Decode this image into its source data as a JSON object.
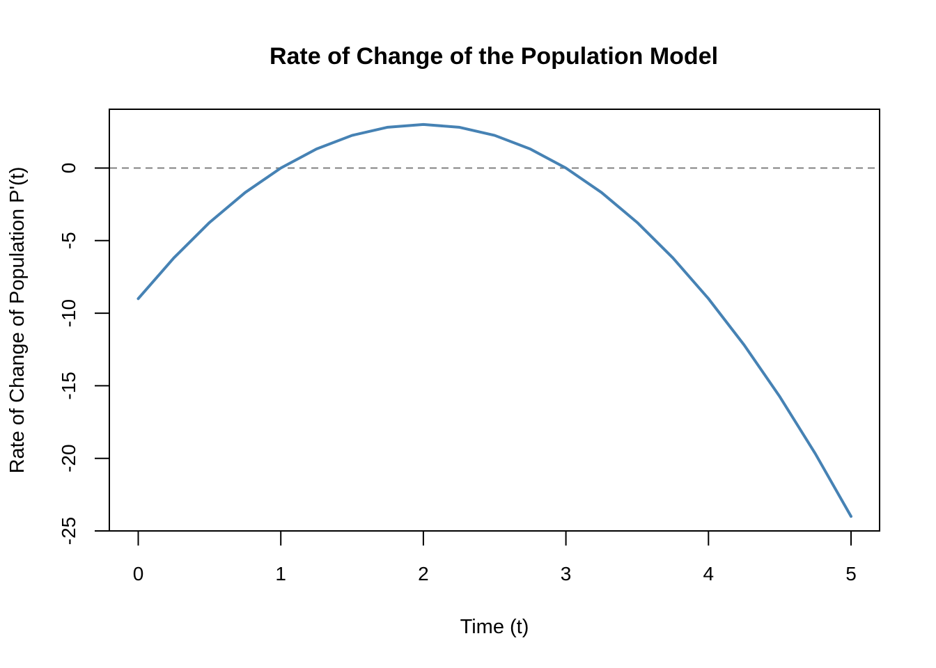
{
  "chart_data": {
    "type": "line",
    "title": "Rate of Change of the Population Model",
    "xlabel": "Time (t)",
    "ylabel": "Rate of Change of Population P'(t)",
    "xlim": [
      0,
      5
    ],
    "ylim": [
      -25,
      3
    ],
    "x_ticks": [
      0,
      1,
      2,
      3,
      4,
      5
    ],
    "x_tick_labels": [
      "0",
      "1",
      "2",
      "3",
      "4",
      "5"
    ],
    "y_ticks": [
      0,
      -5,
      -10,
      -15,
      -20,
      -25
    ],
    "y_tick_labels": [
      "0",
      "-5",
      "-10",
      "-15",
      "-20",
      "-25"
    ],
    "grid": false,
    "series": [
      {
        "color": "#4682B4",
        "x": [
          0,
          0.25,
          0.5,
          0.75,
          1,
          1.25,
          1.5,
          1.75,
          2,
          2.25,
          2.5,
          2.75,
          3,
          3.25,
          3.5,
          3.75,
          4,
          4.25,
          4.5,
          4.75,
          5
        ],
        "y": [
          -9,
          -6.1875,
          -3.75,
          -1.6875,
          0,
          1.3125,
          2.25,
          2.8125,
          3,
          2.8125,
          2.25,
          1.3125,
          0,
          -1.6875,
          -3.75,
          -6.1875,
          -9,
          -12.1875,
          -15.75,
          -19.6875,
          -24
        ]
      }
    ],
    "reference_lines": [
      {
        "orientation": "horizontal",
        "y": 0,
        "style": "dashed",
        "color": "#808080"
      }
    ]
  }
}
